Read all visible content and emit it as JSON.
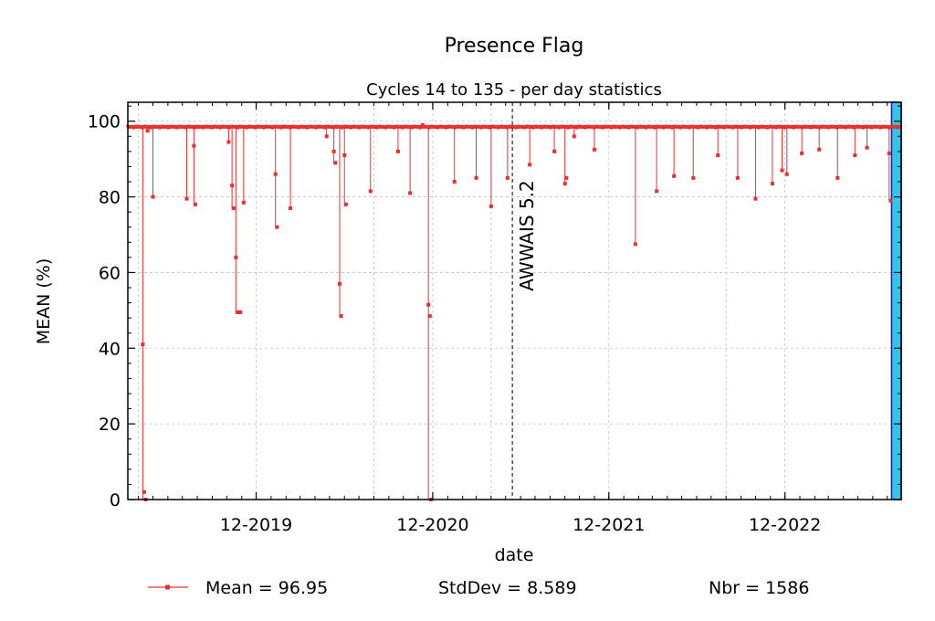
{
  "chart_data": {
    "type": "line",
    "title": "Presence Flag",
    "subtitle": "Cycles 14 to 135 - per day statistics",
    "xlabel": "date",
    "ylabel": "MEAN (%)",
    "ylim": [
      0,
      105
    ],
    "xlim": [
      "2019-03-10",
      "2023-07-30"
    ],
    "yticks": [
      0,
      20,
      40,
      60,
      80,
      100
    ],
    "xticks": [
      {
        "label": "12-2019",
        "date": "2019-12-01"
      },
      {
        "label": "12-2020",
        "date": "2020-12-01"
      },
      {
        "label": "12-2021",
        "date": "2021-12-01"
      },
      {
        "label": "12-2022",
        "date": "2022-12-01"
      }
    ],
    "x_minor_grid_dates": [
      "2019-04-01",
      "2020-08-01",
      "2021-04-01",
      "2022-08-01"
    ],
    "grid": true,
    "colors": {
      "series": "#ee2e2e",
      "axis": "#000000",
      "grid": "#c0c0c0",
      "highlight": "#2ec8e6",
      "highlight_edge": "#1a1aa0"
    },
    "annotation": {
      "text": "AWWAIS 5.2",
      "date": "2021-05-15",
      "style": "dashed vertical line"
    },
    "highlight_span": {
      "start": "2023-07-10",
      "end": "2023-07-30"
    },
    "series": [
      {
        "name": "Mean = 96.95",
        "baseline": 98.5,
        "baseline_start": "2019-03-10",
        "baseline_end": "2023-07-28",
        "dips": [
          {
            "date": "2019-04-10",
            "values": [
              41,
              2,
              0
            ]
          },
          {
            "date": "2019-04-20",
            "values": [
              97.5
            ]
          },
          {
            "date": "2019-05-01",
            "values": [
              80
            ]
          },
          {
            "date": "2019-07-10",
            "values": [
              79.5
            ]
          },
          {
            "date": "2019-07-25",
            "values": [
              93.5,
              78
            ]
          },
          {
            "date": "2019-10-05",
            "values": [
              94.5
            ]
          },
          {
            "date": "2019-10-12",
            "values": [
              83,
              77
            ]
          },
          {
            "date": "2019-10-20",
            "values": [
              64,
              49.5,
              49.5,
              49.5
            ]
          },
          {
            "date": "2019-11-05",
            "values": [
              78.5
            ]
          },
          {
            "date": "2020-01-10",
            "values": [
              86,
              72
            ]
          },
          {
            "date": "2020-02-10",
            "values": [
              77
            ]
          },
          {
            "date": "2020-04-25",
            "values": [
              96
            ]
          },
          {
            "date": "2020-05-10",
            "values": [
              92,
              89
            ]
          },
          {
            "date": "2020-05-22",
            "values": [
              57,
              48.5
            ]
          },
          {
            "date": "2020-06-01",
            "values": [
              91,
              78
            ]
          },
          {
            "date": "2020-07-25",
            "values": [
              81.5
            ]
          },
          {
            "date": "2020-09-20",
            "values": [
              92
            ]
          },
          {
            "date": "2020-10-15",
            "values": [
              81
            ]
          },
          {
            "date": "2020-11-10",
            "values": [
              99
            ]
          },
          {
            "date": "2020-11-22",
            "values": [
              51.5,
              48.5,
              0
            ]
          },
          {
            "date": "2021-01-15",
            "values": [
              84
            ]
          },
          {
            "date": "2021-03-01",
            "values": [
              85
            ]
          },
          {
            "date": "2021-04-01",
            "values": [
              77.5
            ]
          },
          {
            "date": "2021-05-05",
            "values": [
              85
            ]
          },
          {
            "date": "2021-06-20",
            "values": [
              88.5
            ]
          },
          {
            "date": "2021-08-10",
            "values": [
              92
            ]
          },
          {
            "date": "2021-09-01",
            "values": [
              83.5,
              85
            ]
          },
          {
            "date": "2021-09-20",
            "values": [
              96
            ]
          },
          {
            "date": "2021-11-01",
            "values": [
              92.5
            ]
          },
          {
            "date": "2022-01-25",
            "values": [
              67.5
            ]
          },
          {
            "date": "2022-03-10",
            "values": [
              81.5
            ]
          },
          {
            "date": "2022-04-15",
            "values": [
              85.5
            ]
          },
          {
            "date": "2022-05-25",
            "values": [
              85
            ]
          },
          {
            "date": "2022-07-15",
            "values": [
              91
            ]
          },
          {
            "date": "2022-08-25",
            "values": [
              85
            ]
          },
          {
            "date": "2022-10-01",
            "values": [
              79.5
            ]
          },
          {
            "date": "2022-11-05",
            "values": [
              83.5
            ]
          },
          {
            "date": "2022-11-25",
            "values": [
              87
            ]
          },
          {
            "date": "2022-12-05",
            "values": [
              86
            ]
          },
          {
            "date": "2023-01-05",
            "values": [
              91.5
            ]
          },
          {
            "date": "2023-02-10",
            "values": [
              92.5
            ]
          },
          {
            "date": "2023-03-20",
            "values": [
              85
            ]
          },
          {
            "date": "2023-04-25",
            "values": [
              91
            ]
          },
          {
            "date": "2023-05-20",
            "values": [
              93
            ]
          },
          {
            "date": "2023-07-05",
            "values": [
              91.5,
              79
            ]
          }
        ]
      }
    ]
  },
  "legend": {
    "mean_label": "Mean = 96.95",
    "stddev_label": "StdDev = 8.589",
    "nbr_label": "Nbr = 1586"
  }
}
